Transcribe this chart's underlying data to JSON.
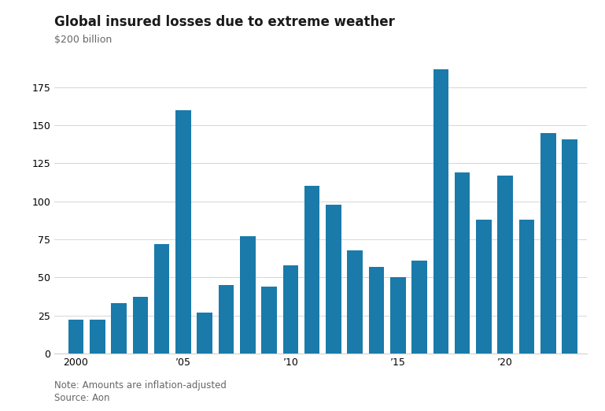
{
  "title": "Global insured losses due to extreme weather",
  "ylabel": "$200 billion",
  "note": "Note: Amounts are inflation-adjusted",
  "source": "Source: Aon",
  "years": [
    2000,
    2001,
    2002,
    2003,
    2004,
    2005,
    2006,
    2007,
    2008,
    2009,
    2010,
    2011,
    2012,
    2013,
    2014,
    2015,
    2016,
    2017,
    2018,
    2019,
    2020,
    2021,
    2022,
    2023
  ],
  "values": [
    22,
    22,
    33,
    37,
    72,
    160,
    27,
    45,
    77,
    44,
    58,
    110,
    98,
    68,
    57,
    50,
    61,
    187,
    119,
    88,
    117,
    88,
    145,
    141
  ],
  "bar_color": "#1a7aaa",
  "background_color": "#ffffff",
  "ylim": [
    0,
    200
  ],
  "yticks": [
    0,
    25,
    50,
    75,
    100,
    125,
    150,
    175
  ],
  "grid_color": "#d0d0d0",
  "title_fontsize": 12,
  "label_fontsize": 9,
  "note_fontsize": 8.5,
  "xtick_labels": [
    "2000",
    "’05",
    "’10",
    "’15",
    "’20"
  ],
  "xtick_positions": [
    2000,
    2005,
    2010,
    2015,
    2020
  ]
}
